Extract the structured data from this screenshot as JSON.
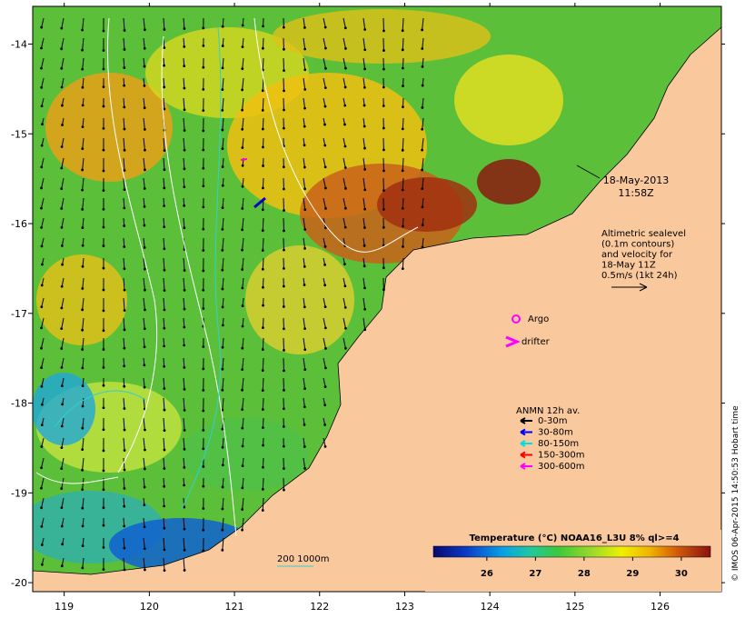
{
  "map": {
    "x_ticks": [
      "119",
      "120",
      "121",
      "122",
      "123",
      "124",
      "125",
      "126"
    ],
    "y_ticks": [
      "-14",
      "-15",
      "-16",
      "-17",
      "-18",
      "-19",
      "-20"
    ],
    "lon_range": [
      118.63,
      126.72
    ],
    "lat_range": [
      -20.1,
      -13.58
    ],
    "sea_color_range": [
      "#0a1070",
      "#8a1010"
    ],
    "land_color": "#f9c89d"
  },
  "annotations": {
    "datetime_line1": "18-May-2013",
    "datetime_line2": "11:58Z",
    "altimetric_lines": [
      "Altimetric sealevel",
      "(0.1m contours)",
      "and velocity for",
      "18-May 11Z",
      "0.5m/s (1kt 24h)"
    ],
    "argo_label": "Argo",
    "drifter_label": "drifter",
    "anmn_title": "ANMN 12h av.",
    "anmn_items": [
      {
        "label": "0-30m",
        "color": "#000000"
      },
      {
        "label": "30-80m",
        "color": "#0000ff"
      },
      {
        "label": "80-150m",
        "color": "#00e0e0"
      },
      {
        "label": "150-300m",
        "color": "#ff0000"
      },
      {
        "label": "300-600m",
        "color": "#ff00ff"
      }
    ],
    "depth_label": "200 1000m"
  },
  "colorbar": {
    "title": "Temperature (°C) NOAA16_L3U 8% ql>=4",
    "ticks": [
      "26",
      "27",
      "28",
      "29",
      "30"
    ],
    "range": [
      24.9,
      30.6
    ]
  },
  "credit": "© IMOS 06-Apr-2015 14:50:53 Hobart time"
}
